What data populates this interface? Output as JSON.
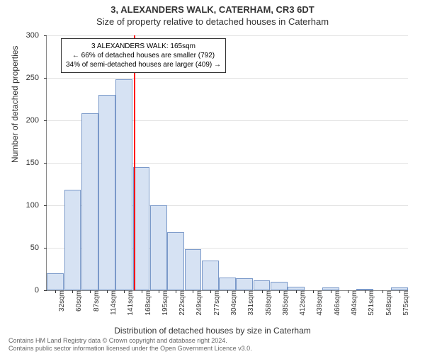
{
  "title_top": "3, ALEXANDERS WALK, CATERHAM, CR3 6DT",
  "title_sub": "Size of property relative to detached houses in Caterham",
  "ylabel": "Number of detached properties",
  "xlabel": "Distribution of detached houses by size in Caterham",
  "footer_line1": "Contains HM Land Registry data © Crown copyright and database right 2024.",
  "footer_line2": "Contains public sector information licensed under the Open Government Licence v3.0.",
  "chart": {
    "type": "histogram",
    "ylim": [
      0,
      300
    ],
    "ytick_step": 50,
    "bar_fill": "#d6e2f3",
    "bar_stroke": "#7a99c9",
    "grid_color": "#888888",
    "background": "#ffffff",
    "marker_color": "#ff0000",
    "marker_x_index": 5.05,
    "label_fontsize": 11,
    "categories": [
      "32sqm",
      "60sqm",
      "87sqm",
      "114sqm",
      "141sqm",
      "168sqm",
      "195sqm",
      "222sqm",
      "249sqm",
      "277sqm",
      "304sqm",
      "331sqm",
      "358sqm",
      "385sqm",
      "412sqm",
      "439sqm",
      "466sqm",
      "494sqm",
      "521sqm",
      "548sqm",
      "575sqm"
    ],
    "values": [
      20,
      118,
      208,
      230,
      248,
      145,
      100,
      68,
      48,
      35,
      15,
      14,
      12,
      10,
      4,
      0,
      3,
      0,
      2,
      0,
      3
    ]
  },
  "annotation": {
    "line1": "3 ALEXANDERS WALK: 165sqm",
    "line2": "← 66% of detached houses are smaller (792)",
    "line3": "34% of semi-detached houses are larger (409) →"
  }
}
